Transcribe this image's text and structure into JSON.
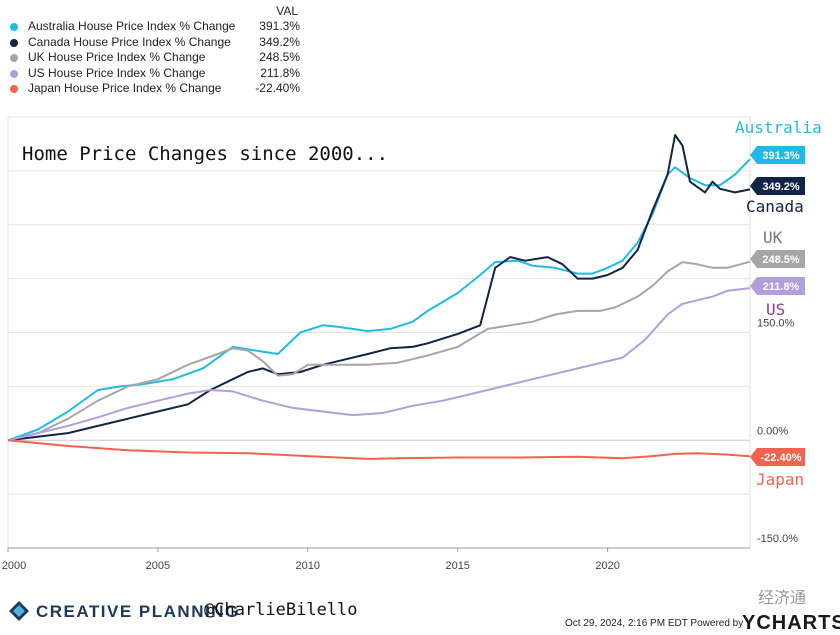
{
  "chart_data": {
    "type": "line",
    "title": "Home Price Changes since 2000...",
    "value_header": "VAL",
    "x_ticks": [
      2000,
      2005,
      2010,
      2015,
      2020
    ],
    "y_ticks": [
      {
        "value": 150,
        "label": "150.0%"
      },
      {
        "value": 0,
        "label": "0.00%"
      },
      {
        "value": -150,
        "label": "-150.0%"
      }
    ],
    "xlim": [
      2000,
      2024.75
    ],
    "ylim": [
      -150,
      450
    ],
    "grid": true,
    "series": [
      {
        "name": "Australia House Price Index % Change",
        "value_label": "391.3%",
        "chart_label": "Australia",
        "color": "#1fbbe6",
        "points": [
          [
            2000,
            0
          ],
          [
            2001,
            15
          ],
          [
            2002,
            40
          ],
          [
            2003,
            70
          ],
          [
            2003.75,
            75
          ],
          [
            2004.5,
            78
          ],
          [
            2005.5,
            85
          ],
          [
            2006.5,
            100
          ],
          [
            2007.5,
            130
          ],
          [
            2008.25,
            125
          ],
          [
            2009,
            120
          ],
          [
            2009.75,
            150
          ],
          [
            2010.5,
            160
          ],
          [
            2011,
            158
          ],
          [
            2012,
            152
          ],
          [
            2012.75,
            155
          ],
          [
            2013.5,
            165
          ],
          [
            2014,
            180
          ],
          [
            2015,
            205
          ],
          [
            2015.75,
            230
          ],
          [
            2016.25,
            248
          ],
          [
            2017,
            250
          ],
          [
            2017.5,
            243
          ],
          [
            2018.25,
            240
          ],
          [
            2019,
            232
          ],
          [
            2019.5,
            232
          ],
          [
            2020,
            240
          ],
          [
            2020.5,
            250
          ],
          [
            2021,
            275
          ],
          [
            2021.5,
            315
          ],
          [
            2022,
            370
          ],
          [
            2022.25,
            380
          ],
          [
            2022.75,
            365
          ],
          [
            2023.25,
            355
          ],
          [
            2023.75,
            355
          ],
          [
            2024.25,
            370
          ],
          [
            2024.75,
            391.3
          ]
        ]
      },
      {
        "name": "Canada House Price Index % Change",
        "value_label": "349.2%",
        "chart_label": "Canada",
        "color": "#0f2447",
        "points": [
          [
            2000,
            0
          ],
          [
            2002,
            10
          ],
          [
            2003,
            20
          ],
          [
            2004,
            30
          ],
          [
            2005,
            40
          ],
          [
            2006,
            50
          ],
          [
            2006.75,
            70
          ],
          [
            2007.5,
            85
          ],
          [
            2008,
            95
          ],
          [
            2008.5,
            100
          ],
          [
            2009,
            92
          ],
          [
            2009.75,
            95
          ],
          [
            2010.5,
            105
          ],
          [
            2011,
            110
          ],
          [
            2012,
            120
          ],
          [
            2012.75,
            128
          ],
          [
            2013.5,
            130
          ],
          [
            2014,
            135
          ],
          [
            2015,
            148
          ],
          [
            2015.75,
            160
          ],
          [
            2016.25,
            240
          ],
          [
            2016.75,
            255
          ],
          [
            2017.25,
            250
          ],
          [
            2018,
            255
          ],
          [
            2018.5,
            245
          ],
          [
            2019,
            225
          ],
          [
            2019.5,
            225
          ],
          [
            2020,
            230
          ],
          [
            2020.5,
            240
          ],
          [
            2021,
            265
          ],
          [
            2021.5,
            320
          ],
          [
            2022,
            370
          ],
          [
            2022.25,
            425
          ],
          [
            2022.5,
            410
          ],
          [
            2022.75,
            360
          ],
          [
            2023.25,
            345
          ],
          [
            2023.5,
            360
          ],
          [
            2023.75,
            350
          ],
          [
            2024.25,
            345
          ],
          [
            2024.75,
            349.2
          ]
        ]
      },
      {
        "name": "UK House Price Index % Change",
        "value_label": "248.5%",
        "chart_label": "UK",
        "color": "#a6a6a6",
        "points": [
          [
            2000,
            0
          ],
          [
            2001,
            10
          ],
          [
            2002,
            30
          ],
          [
            2003,
            55
          ],
          [
            2004,
            75
          ],
          [
            2005,
            85
          ],
          [
            2006,
            105
          ],
          [
            2007,
            120
          ],
          [
            2007.5,
            128
          ],
          [
            2008,
            125
          ],
          [
            2008.5,
            110
          ],
          [
            2009,
            90
          ],
          [
            2009.5,
            92
          ],
          [
            2010,
            105
          ],
          [
            2011,
            105
          ],
          [
            2012,
            105
          ],
          [
            2013,
            108
          ],
          [
            2014,
            118
          ],
          [
            2015,
            130
          ],
          [
            2016,
            155
          ],
          [
            2016.75,
            160
          ],
          [
            2017.5,
            165
          ],
          [
            2018.25,
            175
          ],
          [
            2019,
            180
          ],
          [
            2019.75,
            180
          ],
          [
            2020.25,
            185
          ],
          [
            2021,
            200
          ],
          [
            2021.5,
            215
          ],
          [
            2022,
            235
          ],
          [
            2022.5,
            248
          ],
          [
            2023,
            245
          ],
          [
            2023.5,
            240
          ],
          [
            2024,
            240
          ],
          [
            2024.75,
            248.5
          ]
        ]
      },
      {
        "name": "US House Price Index % Change",
        "value_label": "211.8%",
        "chart_label": "US",
        "color": "#b39ddb",
        "points": [
          [
            2000,
            0
          ],
          [
            2001,
            10
          ],
          [
            2002,
            20
          ],
          [
            2003,
            32
          ],
          [
            2004,
            45
          ],
          [
            2005,
            55
          ],
          [
            2006,
            65
          ],
          [
            2006.75,
            70
          ],
          [
            2007.5,
            68
          ],
          [
            2008.5,
            55
          ],
          [
            2009.5,
            45
          ],
          [
            2010.5,
            40
          ],
          [
            2011.5,
            35
          ],
          [
            2012.5,
            38
          ],
          [
            2013.5,
            48
          ],
          [
            2014.5,
            55
          ],
          [
            2015.5,
            65
          ],
          [
            2016.5,
            75
          ],
          [
            2017.5,
            85
          ],
          [
            2018.5,
            95
          ],
          [
            2019.5,
            105
          ],
          [
            2020.5,
            115
          ],
          [
            2021.25,
            140
          ],
          [
            2022,
            175
          ],
          [
            2022.5,
            190
          ],
          [
            2023,
            195
          ],
          [
            2023.5,
            200
          ],
          [
            2024,
            208
          ],
          [
            2024.75,
            211.8
          ]
        ]
      },
      {
        "name": "Japan House Price Index % Change",
        "value_label": "-22.40%",
        "chart_label": "Japan",
        "color": "#f2634f",
        "points": [
          [
            2000,
            0
          ],
          [
            2002,
            -8
          ],
          [
            2004,
            -14
          ],
          [
            2006,
            -17
          ],
          [
            2008,
            -18
          ],
          [
            2010,
            -22
          ],
          [
            2012,
            -26
          ],
          [
            2013,
            -25
          ],
          [
            2015,
            -24
          ],
          [
            2017,
            -24
          ],
          [
            2019,
            -23
          ],
          [
            2020.5,
            -25
          ],
          [
            2021.5,
            -22
          ],
          [
            2022.25,
            -19
          ],
          [
            2023,
            -18
          ],
          [
            2024,
            -20
          ],
          [
            2024.75,
            -22.4
          ]
        ]
      }
    ]
  },
  "footer": {
    "brand": "CREATIVE PLANNING",
    "handle": "@CharlieBilello",
    "timestamp": "Oct 29, 2024, 2:16 PM EDT Powered by",
    "provider": "YCHARTS",
    "watermark": "经济通"
  }
}
